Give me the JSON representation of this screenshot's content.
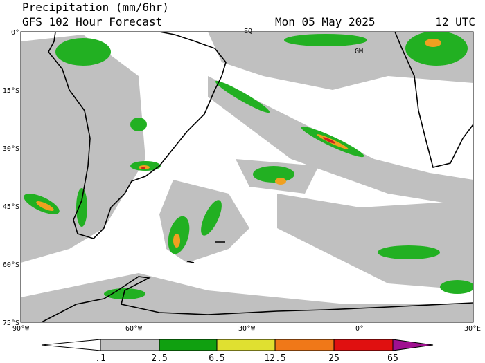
{
  "header": {
    "title": "Precipitation (mm/6hr)",
    "subtitle": "GFS 102 Hour Forecast",
    "date": "Mon 05 May 2025",
    "time": "12 UTC"
  },
  "map": {
    "lat_labels": [
      "0°",
      "15°S",
      "30°S",
      "45°S",
      "60°S",
      "75°S"
    ],
    "lon_labels": [
      "90°W",
      "60°W",
      "30°W",
      "0°",
      "30°E"
    ],
    "place_labels": [
      "EQ",
      "GM"
    ]
  },
  "legend": {
    "labels": [
      ".1",
      "2.5",
      "6.5",
      "12.5",
      "25",
      "65"
    ]
  }
}
